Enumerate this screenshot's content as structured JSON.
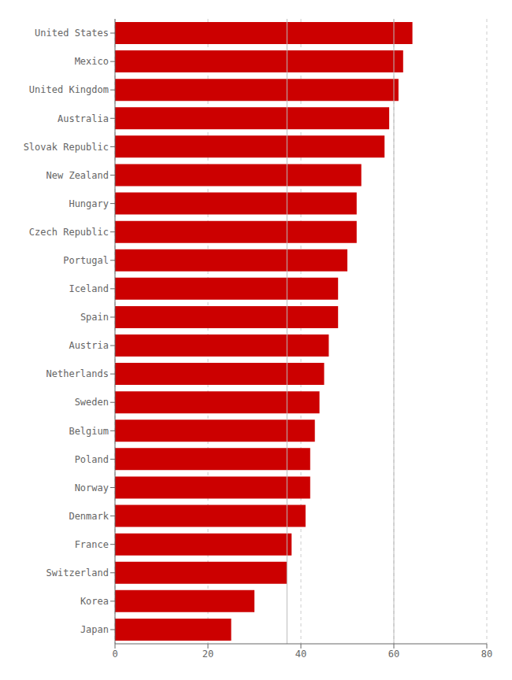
{
  "chart_data": {
    "type": "bar",
    "orientation": "horizontal",
    "categories": [
      "United States",
      "Mexico",
      "United Kingdom",
      "Australia",
      "Slovak Republic",
      "New Zealand",
      "Hungary",
      "Czech Republic",
      "Portugal",
      "Iceland",
      "Spain",
      "Austria",
      "Netherlands",
      "Sweden",
      "Belgium",
      "Poland",
      "Norway",
      "Denmark",
      "France",
      "Switzerland",
      "Korea",
      "Japan"
    ],
    "values": [
      64,
      62,
      61,
      59,
      58,
      53,
      52,
      52,
      50,
      48,
      48,
      46,
      45,
      44,
      43,
      42,
      42,
      41,
      38,
      37,
      30,
      25
    ],
    "color": "#cc0000",
    "xlim": [
      0,
      80
    ],
    "xticks": [
      0,
      20,
      40,
      60,
      80
    ],
    "grid": true,
    "reference_lines": [
      37,
      60
    ]
  }
}
